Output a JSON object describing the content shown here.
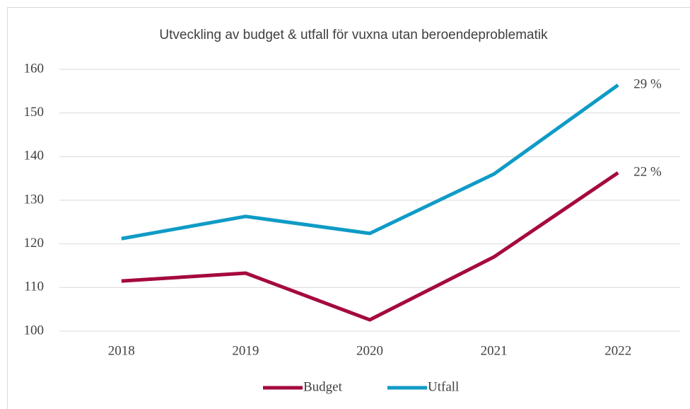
{
  "chart_data": {
    "type": "line",
    "title": "Utveckling av budget & utfall för vuxna utan beroendeproblematik",
    "categories": [
      "2018",
      "2019",
      "2020",
      "2021",
      "2022"
    ],
    "series": [
      {
        "name": "Budget",
        "color": "#a50a3c",
        "values": [
          111.5,
          113.3,
          102.6,
          117,
          136.3
        ],
        "end_label": "22 %"
      },
      {
        "name": "Utfall",
        "color": "#0f9bc6",
        "values": [
          121.2,
          126.3,
          122.4,
          136,
          156.4
        ],
        "end_label": "29 %"
      }
    ],
    "ylim": [
      100,
      160
    ],
    "yticks": [
      100,
      110,
      120,
      130,
      140,
      150,
      160
    ],
    "grid": true,
    "legend": "bottom"
  }
}
